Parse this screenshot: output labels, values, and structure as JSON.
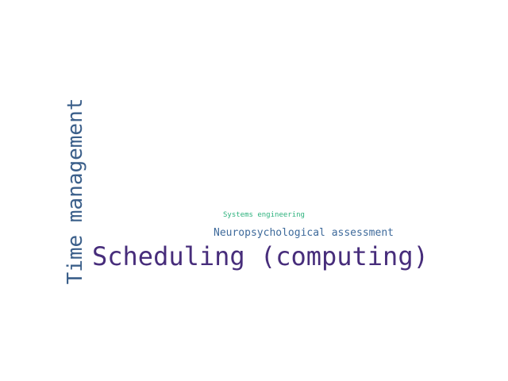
{
  "word_cloud": {
    "words": [
      {
        "text": "Scheduling (computing)",
        "color": "#472d7b",
        "orientation": "horizontal"
      },
      {
        "text": "Time management",
        "color": "#3b5f8a",
        "orientation": "vertical"
      },
      {
        "text": "Neuropsychological assessment",
        "color": "#3e6a9b",
        "orientation": "horizontal"
      },
      {
        "text": "Systems engineering",
        "color": "#2db27d",
        "orientation": "horizontal"
      }
    ]
  }
}
